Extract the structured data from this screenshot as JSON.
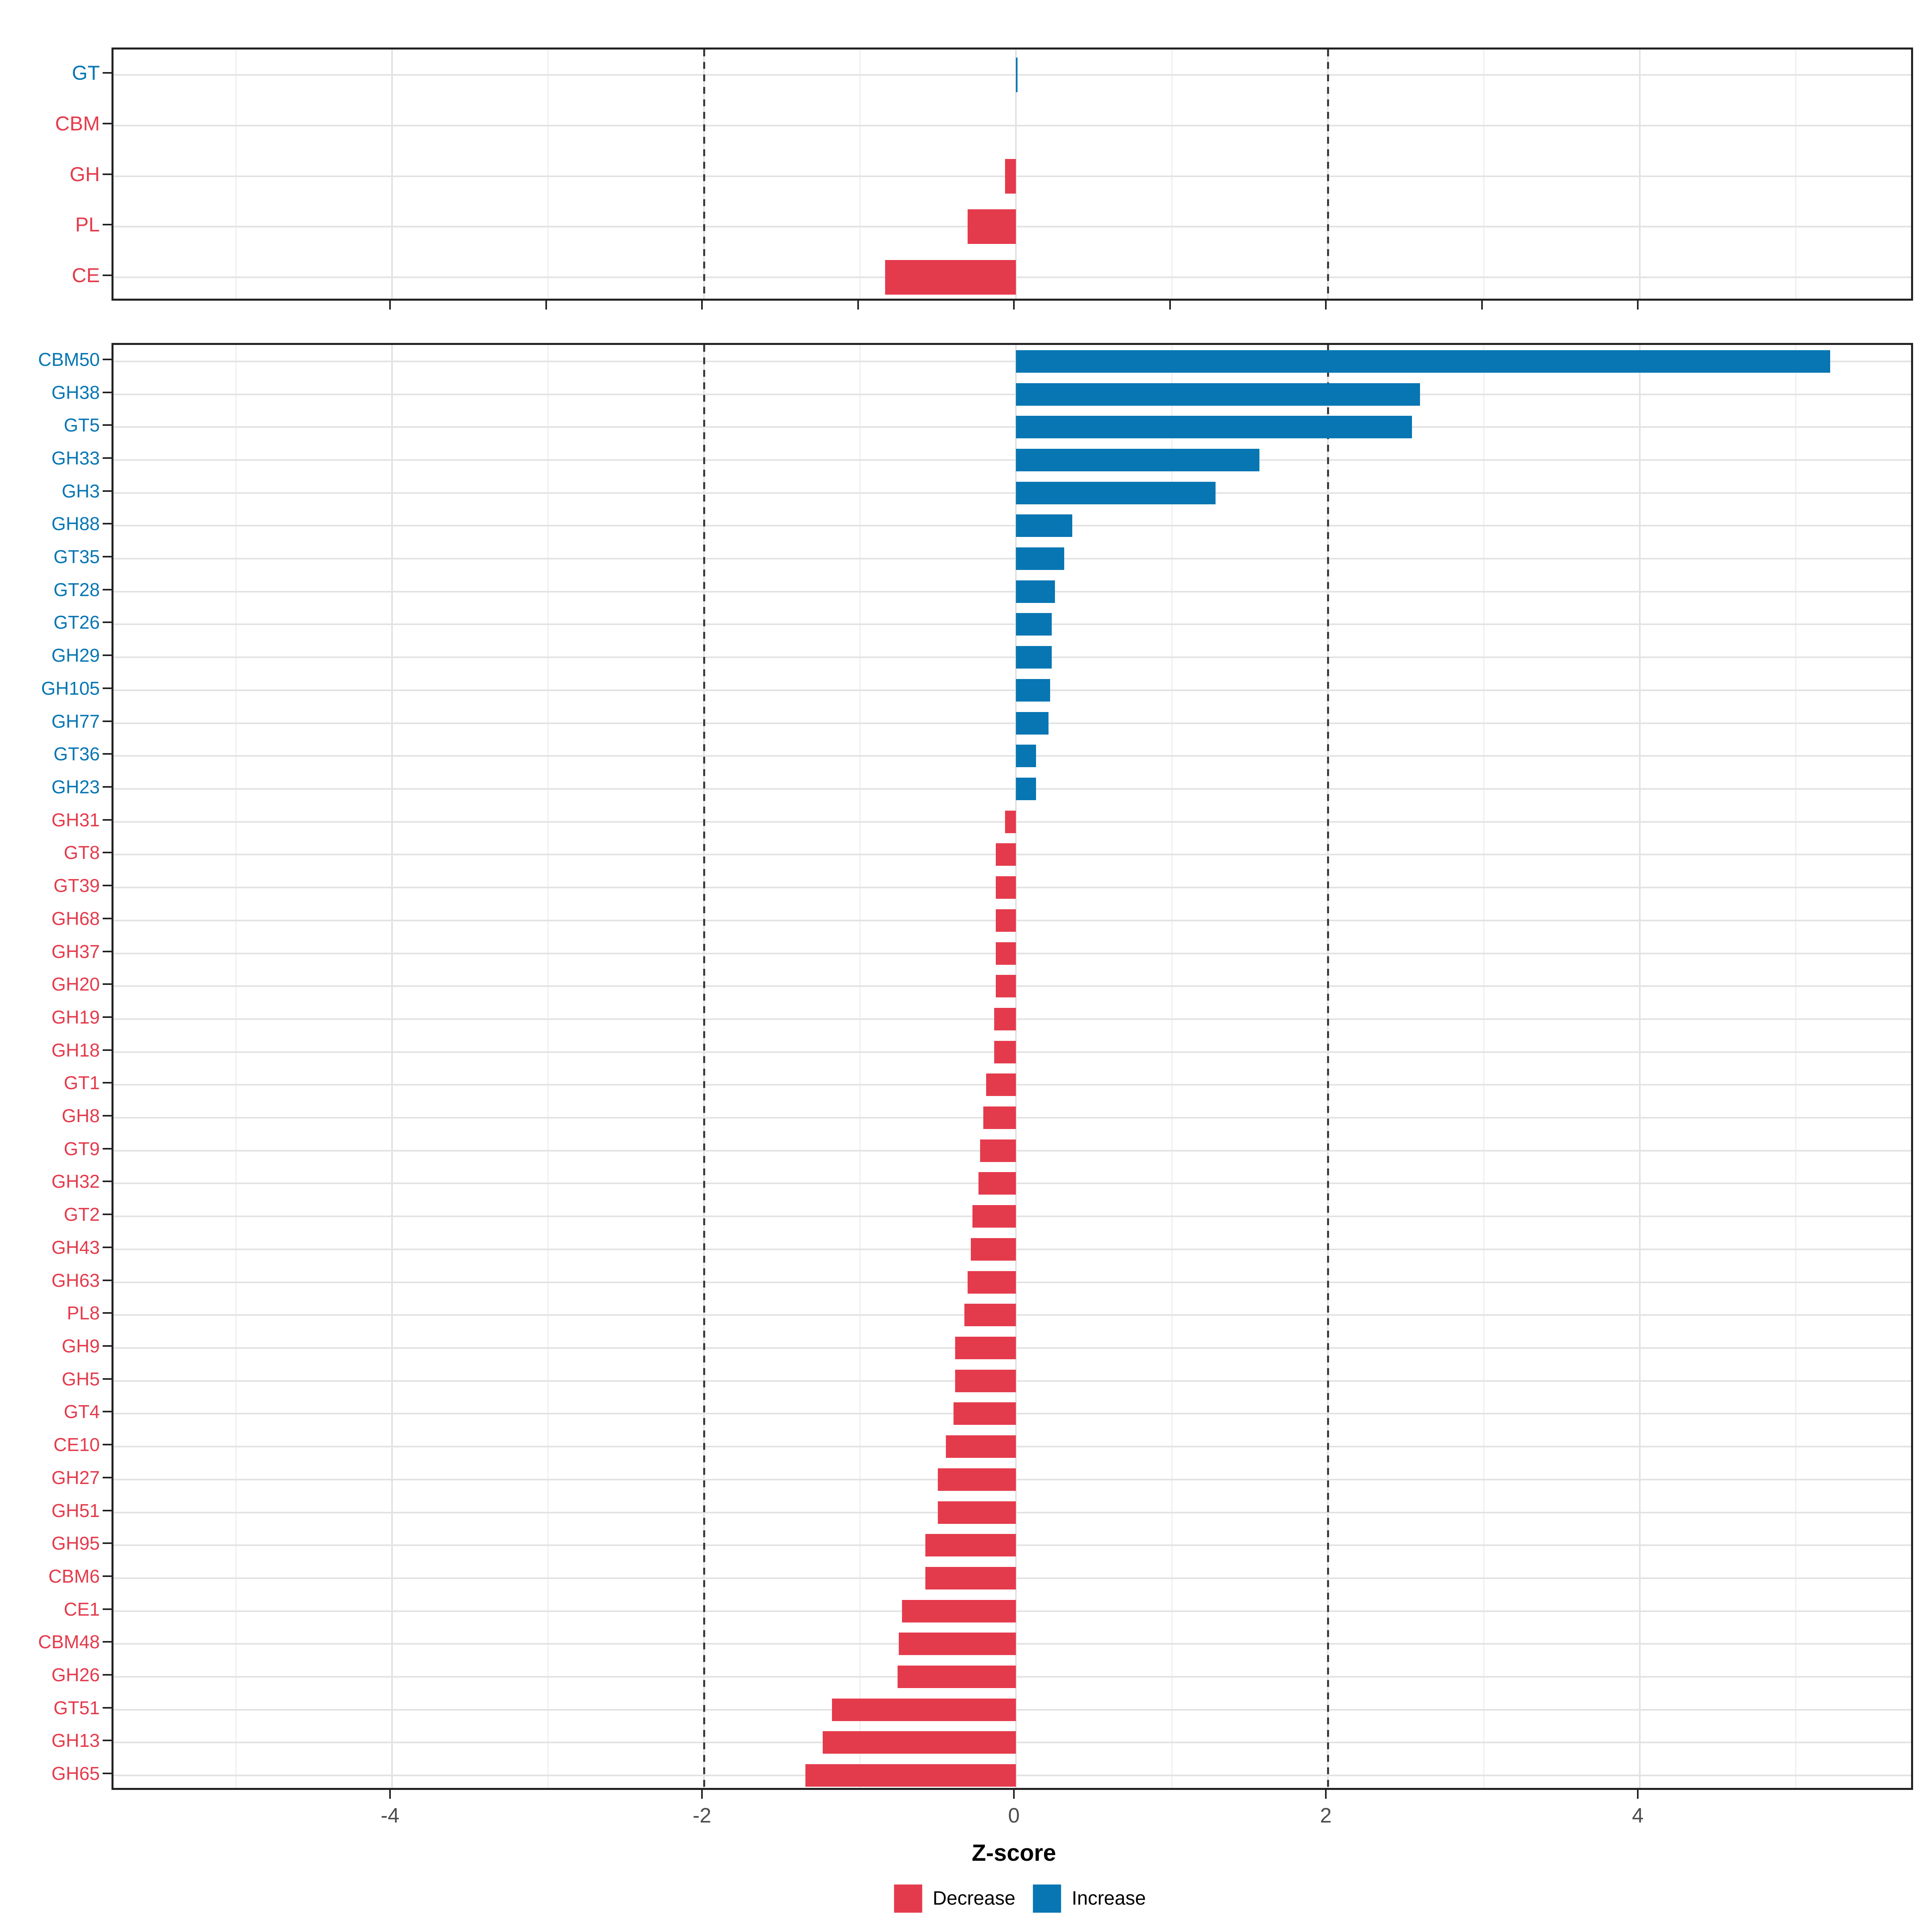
{
  "chart_data": {
    "type": "bar",
    "orientation": "horizontal",
    "title": "",
    "xlabel": "Z-score",
    "ylabel": "",
    "xlim": [
      -5.78,
      5.78
    ],
    "x_axis_ticks_bottom": [
      -4,
      -2,
      0,
      2,
      4
    ],
    "x_axis_tick_labels_bottom": [
      "-4",
      "-2",
      "0",
      "2",
      "4"
    ],
    "x_axis_ticks_top_panel": [
      -4,
      -3,
      -2,
      -1,
      0,
      1,
      2,
      3,
      4
    ],
    "dashed_vlines": [
      -2,
      2
    ],
    "grid": "on",
    "legend_position": "bottom-center",
    "colors": {
      "decrease": "#e43b4c",
      "increase": "#0776b3",
      "grid_major": "#e2e2e2",
      "grid_minor": "#efefef",
      "dashed_line": "#3b3b3b",
      "axis_text": "#4d4d4d",
      "panel_border": "#222222"
    },
    "legend": [
      {
        "label": "Decrease",
        "key": "decrease"
      },
      {
        "label": "Increase",
        "key": "increase"
      }
    ],
    "panels": [
      {
        "name": "enzyme-classes",
        "rows": [
          {
            "label": "GT",
            "value": 0.01,
            "direction": "increase"
          },
          {
            "label": "CBM",
            "value": 0.0,
            "direction": "decrease"
          },
          {
            "label": "GH",
            "value": -0.07,
            "direction": "decrease"
          },
          {
            "label": "PL",
            "value": -0.31,
            "direction": "decrease"
          },
          {
            "label": "CE",
            "value": -0.84,
            "direction": "decrease"
          }
        ]
      },
      {
        "name": "enzyme-families",
        "rows": [
          {
            "label": "CBM50",
            "value": 5.22,
            "direction": "increase"
          },
          {
            "label": "GH38",
            "value": 2.59,
            "direction": "increase"
          },
          {
            "label": "GT5",
            "value": 2.54,
            "direction": "increase"
          },
          {
            "label": "GH33",
            "value": 1.56,
            "direction": "increase"
          },
          {
            "label": "GH3",
            "value": 1.28,
            "direction": "increase"
          },
          {
            "label": "GH88",
            "value": 0.36,
            "direction": "increase"
          },
          {
            "label": "GT35",
            "value": 0.31,
            "direction": "increase"
          },
          {
            "label": "GT28",
            "value": 0.25,
            "direction": "increase"
          },
          {
            "label": "GT26",
            "value": 0.23,
            "direction": "increase"
          },
          {
            "label": "GH29",
            "value": 0.23,
            "direction": "increase"
          },
          {
            "label": "GH105",
            "value": 0.22,
            "direction": "increase"
          },
          {
            "label": "GH77",
            "value": 0.21,
            "direction": "increase"
          },
          {
            "label": "GT36",
            "value": 0.13,
            "direction": "increase"
          },
          {
            "label": "GH23",
            "value": 0.13,
            "direction": "increase"
          },
          {
            "label": "GH31",
            "value": -0.07,
            "direction": "decrease"
          },
          {
            "label": "GT8",
            "value": -0.13,
            "direction": "decrease"
          },
          {
            "label": "GT39",
            "value": -0.13,
            "direction": "decrease"
          },
          {
            "label": "GH68",
            "value": -0.13,
            "direction": "decrease"
          },
          {
            "label": "GH37",
            "value": -0.13,
            "direction": "decrease"
          },
          {
            "label": "GH20",
            "value": -0.13,
            "direction": "decrease"
          },
          {
            "label": "GH19",
            "value": -0.14,
            "direction": "decrease"
          },
          {
            "label": "GH18",
            "value": -0.14,
            "direction": "decrease"
          },
          {
            "label": "GT1",
            "value": -0.19,
            "direction": "decrease"
          },
          {
            "label": "GH8",
            "value": -0.21,
            "direction": "decrease"
          },
          {
            "label": "GT9",
            "value": -0.23,
            "direction": "decrease"
          },
          {
            "label": "GH32",
            "value": -0.24,
            "direction": "decrease"
          },
          {
            "label": "GT2",
            "value": -0.28,
            "direction": "decrease"
          },
          {
            "label": "GH43",
            "value": -0.29,
            "direction": "decrease"
          },
          {
            "label": "GH63",
            "value": -0.31,
            "direction": "decrease"
          },
          {
            "label": "PL8",
            "value": -0.33,
            "direction": "decrease"
          },
          {
            "label": "GH9",
            "value": -0.39,
            "direction": "decrease"
          },
          {
            "label": "GH5",
            "value": -0.39,
            "direction": "decrease"
          },
          {
            "label": "GT4",
            "value": -0.4,
            "direction": "decrease"
          },
          {
            "label": "CE10",
            "value": -0.45,
            "direction": "decrease"
          },
          {
            "label": "GH27",
            "value": -0.5,
            "direction": "decrease"
          },
          {
            "label": "GH51",
            "value": -0.5,
            "direction": "decrease"
          },
          {
            "label": "GH95",
            "value": -0.58,
            "direction": "decrease"
          },
          {
            "label": "CBM6",
            "value": -0.58,
            "direction": "decrease"
          },
          {
            "label": "CE1",
            "value": -0.73,
            "direction": "decrease"
          },
          {
            "label": "CBM48",
            "value": -0.75,
            "direction": "decrease"
          },
          {
            "label": "GH26",
            "value": -0.76,
            "direction": "decrease"
          },
          {
            "label": "GT51",
            "value": -1.18,
            "direction": "decrease"
          },
          {
            "label": "GH13",
            "value": -1.24,
            "direction": "decrease"
          },
          {
            "label": "GH65",
            "value": -1.35,
            "direction": "decrease"
          }
        ]
      }
    ]
  }
}
